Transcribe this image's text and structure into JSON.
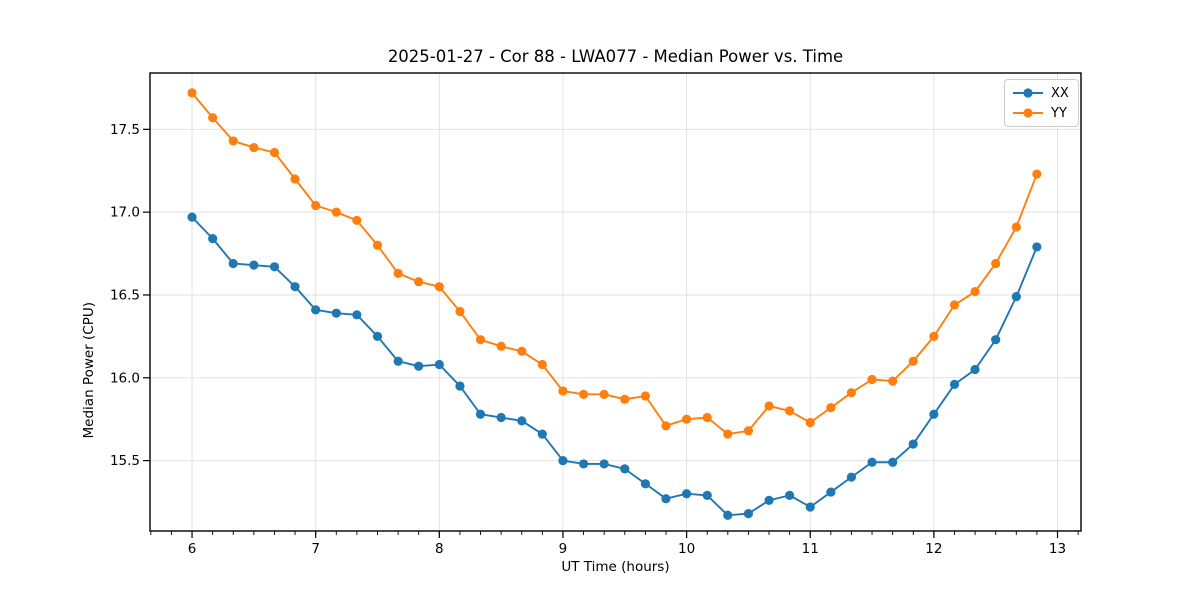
{
  "figure": {
    "background": "#ffffff"
  },
  "chart_data": {
    "type": "line",
    "title": "2025-01-27 - Cor 88 - LWA077 - Median Power vs. Time",
    "xlabel": "UT Time (hours)",
    "ylabel": "Median Power (CPU)",
    "xlim": [
      5.66,
      13.19
    ],
    "ylim": [
      15.075,
      17.84
    ],
    "xticks": [
      6,
      7,
      8,
      9,
      10,
      11,
      12,
      13
    ],
    "xtick_labels": [
      "6",
      "7",
      "8",
      "9",
      "10",
      "11",
      "12",
      "13"
    ],
    "yticks": [
      15.5,
      16.0,
      16.5,
      17.0,
      17.5
    ],
    "ytick_labels": [
      "15.5",
      "16.0",
      "16.5",
      "17.0",
      "17.5"
    ],
    "x_minor_interval": 0.166667,
    "grid": true,
    "legend_position": "upper-right",
    "x": [
      6,
      6.167,
      6.333,
      6.5,
      6.667,
      6.833,
      7,
      7.167,
      7.333,
      7.5,
      7.667,
      7.833,
      8,
      8.167,
      8.333,
      8.5,
      8.667,
      8.833,
      9,
      9.167,
      9.333,
      9.5,
      9.667,
      9.833,
      10,
      10.167,
      10.333,
      10.5,
      10.667,
      10.833,
      11,
      11.167,
      11.333,
      11.5,
      11.667,
      11.833,
      12,
      12.167,
      12.333,
      12.5,
      12.667,
      12.833
    ],
    "series": [
      {
        "name": "XX",
        "color": "#1f77b4",
        "values": [
          16.97,
          16.84,
          16.69,
          16.68,
          16.67,
          16.55,
          16.41,
          16.39,
          16.38,
          16.25,
          16.1,
          16.07,
          16.08,
          15.95,
          15.78,
          15.76,
          15.74,
          15.66,
          15.5,
          15.48,
          15.48,
          15.45,
          15.36,
          15.27,
          15.3,
          15.29,
          15.17,
          15.18,
          15.26,
          15.29,
          15.22,
          15.31,
          15.4,
          15.49,
          15.49,
          15.6,
          15.78,
          15.96,
          16.05,
          16.23,
          16.49,
          16.79
        ]
      },
      {
        "name": "YY",
        "color": "#ff7f0e",
        "values": [
          17.72,
          17.57,
          17.43,
          17.39,
          17.36,
          17.2,
          17.04,
          17.0,
          16.95,
          16.8,
          16.63,
          16.58,
          16.55,
          16.4,
          16.23,
          16.19,
          16.16,
          16.08,
          15.92,
          15.9,
          15.9,
          15.87,
          15.89,
          15.71,
          15.75,
          15.76,
          15.66,
          15.68,
          15.83,
          15.8,
          15.73,
          15.82,
          15.91,
          15.99,
          15.98,
          16.1,
          16.25,
          16.44,
          16.52,
          16.69,
          16.91,
          17.23
        ]
      }
    ]
  },
  "colors": {
    "grid": "#e2e2e2",
    "spine": "#000000",
    "tick": "#000000",
    "text": "#000000",
    "legend_border": "#cccccc"
  }
}
